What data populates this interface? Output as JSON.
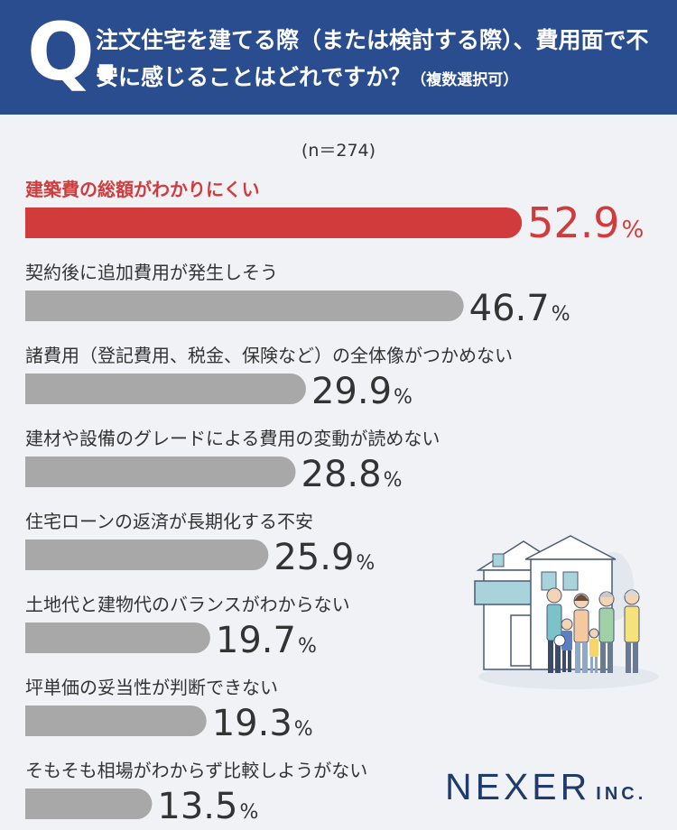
{
  "question": {
    "mark": "Q.",
    "text": "注文住宅を建てる際（または検討する際）、費用面で不安に感じることはどれですか？",
    "note": "（複数選択可）"
  },
  "sample_size": "(n＝274)",
  "logo": {
    "name": "NEXER",
    "suffix": "INC."
  },
  "colors": {
    "highlight": "#d23b3b",
    "bar": "#a8a8a8",
    "header": "#2a4d8f",
    "text": "#333333"
  },
  "chart_data": {
    "type": "bar",
    "orientation": "horizontal",
    "unit": "%",
    "categories": [
      "建築費の総額がわかりにくい",
      "契約後に追加費用が発生しそう",
      "諸費用（登記費用、税金、保険など）の全体像がつかめない",
      "建材や設備のグレードによる費用の変動が読めない",
      "住宅ローンの返済が長期化する不安",
      "土地代と建物代のバランスがわからない",
      "坪単価の妥当性が判断できない",
      "そもそも相場がわからず比較しようがない"
    ],
    "values": [
      52.9,
      46.7,
      29.9,
      28.8,
      25.9,
      19.7,
      19.3,
      13.5
    ],
    "highlight_index": 0
  }
}
